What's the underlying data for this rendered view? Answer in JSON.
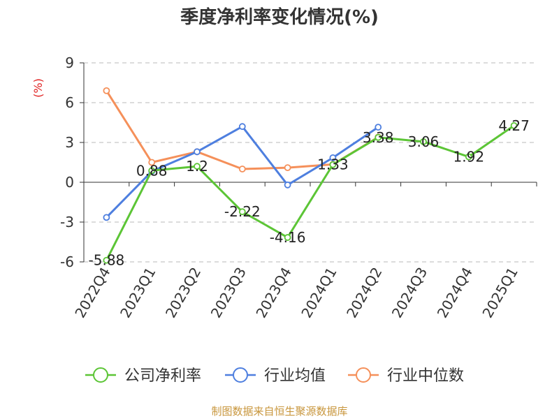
{
  "chart_data": {
    "type": "line",
    "title": "季度净利率变化情况(%)",
    "ylabel": "(%)",
    "categories": [
      "2022Q4",
      "2023Q1",
      "2023Q2",
      "2023Q3",
      "2023Q4",
      "2024Q1",
      "2024Q2",
      "2024Q3",
      "2024Q4",
      "2025Q1"
    ],
    "ylim": [
      -6,
      9
    ],
    "yticks": [
      9,
      6,
      3,
      0,
      -3,
      -6
    ],
    "grid": true,
    "legend_position": "bottom",
    "series": [
      {
        "name": "公司净利率",
        "color": "#5cc536",
        "values": [
          -5.88,
          0.88,
          1.2,
          -2.22,
          -4.16,
          1.33,
          3.38,
          3.06,
          1.92,
          4.27
        ],
        "labels": [
          "-5.88",
          "0.88",
          "1.2",
          "-2.22",
          "-4.16",
          "1.33",
          "3.38",
          "3.06",
          "1.92",
          "4.27"
        ]
      },
      {
        "name": "行业均值",
        "color": "#4e7fdf",
        "values": [
          -2.65,
          0.82,
          2.3,
          4.2,
          -0.2,
          1.85,
          4.15,
          null,
          null,
          null
        ]
      },
      {
        "name": "行业中位数",
        "color": "#f5905a",
        "values": [
          6.9,
          1.5,
          2.3,
          1.0,
          1.1,
          1.35,
          3.4,
          null,
          null,
          null
        ]
      }
    ]
  },
  "source": "制图数据来自恒生聚源数据库"
}
